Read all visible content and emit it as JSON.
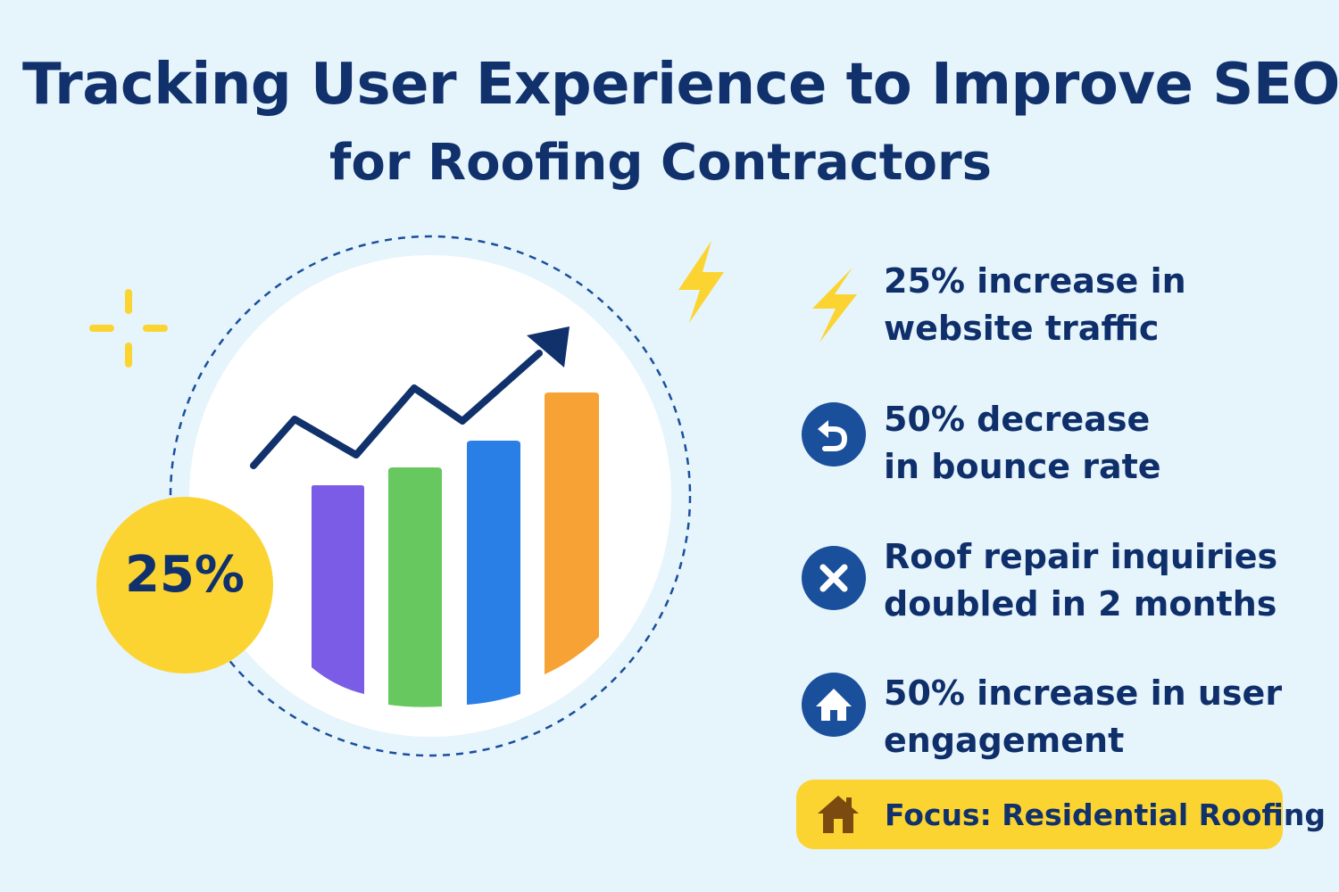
{
  "header": {
    "title_line1": "Tracking User Experience to Improve SEO",
    "title_line2": "for Roofing Contractors"
  },
  "badge": {
    "value_label": "25%"
  },
  "stats": [
    {
      "lines": [
        "25% increase in",
        "website traffic"
      ],
      "icon": "lightning-icon"
    },
    {
      "lines": [
        "50% decrease",
        "in bounce rate"
      ],
      "icon": "return-arrow-icon"
    },
    {
      "lines": [
        "Roof repair inquiries",
        "doubled in 2 months"
      ],
      "icon": "close-x-icon"
    },
    {
      "lines": [
        "50% increase in user",
        "engagement"
      ],
      "icon": "house-icon"
    }
  ],
  "focus": {
    "label": "Focus: Residential Roofing",
    "icon": "house-icon"
  },
  "colors": {
    "background": "#e6f4fc",
    "navy": "#10316b",
    "yellow": "#fbd432",
    "bar_colors": [
      "#7a5ce6",
      "#66c85e",
      "#2a7fe6",
      "#f7a234"
    ]
  }
}
